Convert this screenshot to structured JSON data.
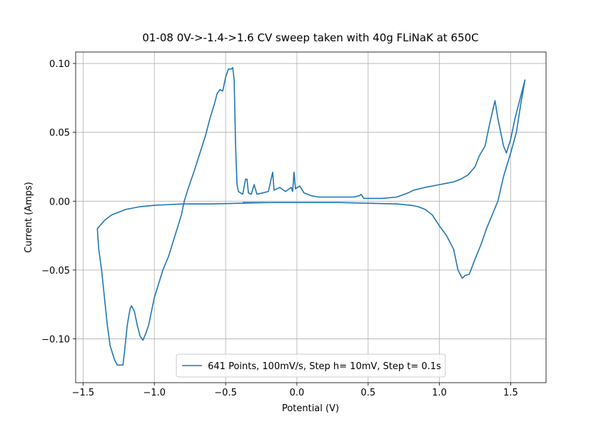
{
  "chart_data": {
    "type": "line",
    "title": "01-08 0V->-1.4->1.6 CV sweep taken with 40g FLiNaK at 650C",
    "xlabel": "Potential (V)",
    "ylabel": "Current (Amps)",
    "xlim": [
      -1.552,
      1.748
    ],
    "ylim": [
      -0.1318,
      0.1083
    ],
    "xticks": [
      {
        "value": -1.5,
        "label": "−1.5"
      },
      {
        "value": -1.0,
        "label": "−1.0"
      },
      {
        "value": -0.5,
        "label": "−0.5"
      },
      {
        "value": 0,
        "label": "0.0"
      },
      {
        "value": 0.5,
        "label": "0.5"
      },
      {
        "value": 1.0,
        "label": "1.0"
      },
      {
        "value": 1.5,
        "label": "1.5"
      }
    ],
    "yticks": [
      {
        "value": -0.1,
        "label": "−0.10"
      },
      {
        "value": -0.05,
        "label": "−0.05"
      },
      {
        "value": 0,
        "label": "0.00"
      },
      {
        "value": 0.05,
        "label": "0.05"
      },
      {
        "value": 0.1,
        "label": "0.10"
      }
    ],
    "grid": true,
    "legend": "lower center",
    "x": [
      0.0,
      -0.2,
      -0.4,
      -0.6,
      -0.8,
      -0.9,
      -1.0,
      -1.1,
      -1.2,
      -1.3,
      -1.35,
      -1.4,
      -1.39,
      -1.37,
      -1.35,
      -1.33,
      -1.31,
      -1.28,
      -1.26,
      -1.22,
      -1.21,
      -1.19,
      -1.17,
      -1.16,
      -1.14,
      -1.12,
      -1.1,
      -1.08,
      -1.06,
      -1.04,
      -1.02,
      -1.0,
      -0.97,
      -0.94,
      -0.9,
      -0.87,
      -0.84,
      -0.81,
      -0.79,
      -0.76,
      -0.72,
      -0.68,
      -0.64,
      -0.61,
      -0.58,
      -0.56,
      -0.54,
      -0.52,
      -0.5,
      -0.48,
      -0.46,
      -0.45,
      -0.44,
      -0.43,
      -0.42,
      -0.41,
      -0.38,
      -0.36,
      -0.35,
      -0.34,
      -0.32,
      -0.3,
      -0.28,
      -0.24,
      -0.2,
      -0.17,
      -0.16,
      -0.12,
      -0.08,
      -0.04,
      -0.03,
      -0.02,
      -0.01,
      0.02,
      0.05,
      0.1,
      0.15,
      0.2,
      0.3,
      0.4,
      0.44,
      0.45,
      0.47,
      0.6,
      0.7,
      0.78,
      0.82,
      0.9,
      1.0,
      1.05,
      1.1,
      1.15,
      1.2,
      1.25,
      1.28,
      1.32,
      1.35,
      1.37,
      1.39,
      1.41,
      1.43,
      1.45,
      1.47,
      1.5,
      1.53,
      1.56,
      1.6,
      1.57,
      1.54,
      1.5,
      1.45,
      1.41,
      1.37,
      1.33,
      1.29,
      1.25,
      1.21,
      1.18,
      1.16,
      1.13,
      1.1,
      1.05,
      1.0,
      0.95,
      0.9,
      0.85,
      0.8,
      0.7,
      0.5,
      0.3,
      0.1,
      -0.1,
      -0.38
    ],
    "series": [
      {
        "name": "641 Points, 100mV/s, Step h= 10mV, Step t= 0.1s",
        "color": "#1f77b4",
        "values": [
          -0.001,
          -0.001,
          -0.0015,
          -0.002,
          -0.002,
          -0.0025,
          -0.003,
          -0.004,
          -0.006,
          -0.01,
          -0.014,
          -0.02,
          -0.035,
          -0.05,
          -0.07,
          -0.09,
          -0.105,
          -0.115,
          -0.119,
          -0.119,
          -0.11,
          -0.09,
          -0.078,
          -0.076,
          -0.08,
          -0.09,
          -0.098,
          -0.101,
          -0.096,
          -0.09,
          -0.08,
          -0.07,
          -0.06,
          -0.05,
          -0.04,
          -0.03,
          -0.02,
          -0.01,
          0.0,
          0.01,
          0.022,
          0.035,
          0.048,
          0.06,
          0.07,
          0.078,
          0.081,
          0.08,
          0.09,
          0.096,
          0.096,
          0.097,
          0.088,
          0.04,
          0.012,
          0.007,
          0.005,
          0.016,
          0.016,
          0.006,
          0.005,
          0.012,
          0.005,
          0.006,
          0.007,
          0.021,
          0.008,
          0.01,
          0.007,
          0.01,
          0.007,
          0.021,
          0.009,
          0.011,
          0.006,
          0.004,
          0.003,
          0.003,
          0.003,
          0.003,
          0.004,
          0.005,
          0.002,
          0.002,
          0.003,
          0.006,
          0.008,
          0.01,
          0.012,
          0.013,
          0.014,
          0.016,
          0.019,
          0.025,
          0.033,
          0.04,
          0.055,
          0.064,
          0.073,
          0.06,
          0.05,
          0.04,
          0.035,
          0.045,
          0.06,
          0.072,
          0.088,
          0.07,
          0.05,
          0.035,
          0.018,
          0.0,
          -0.01,
          -0.02,
          -0.032,
          -0.042,
          -0.053,
          -0.054,
          -0.056,
          -0.05,
          -0.035,
          -0.025,
          -0.018,
          -0.01,
          -0.006,
          -0.004,
          -0.003,
          -0.002,
          -0.0015,
          -0.001,
          -0.001,
          -0.001,
          -0.001
        ]
      }
    ]
  }
}
